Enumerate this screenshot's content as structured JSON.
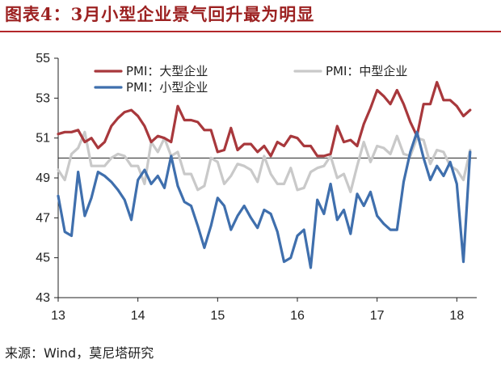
{
  "header": {
    "title": "图表4：3月小型企业景气回升最为明显"
  },
  "footer": {
    "source": "来源：Wind，莫尼塔研究"
  },
  "colors": {
    "large": "#a8383c",
    "medium": "#c9c9c9",
    "small": "#3f6fad",
    "title": "#9c2121",
    "reference": "#222222"
  },
  "chart_data": {
    "type": "line",
    "title": "图表4：3月小型企业景气回升最为明显",
    "xlabel": "",
    "ylabel": "",
    "x_tick_labels": [
      "13",
      "14",
      "15",
      "16",
      "17",
      "18"
    ],
    "x_tick_positions": [
      2013.0,
      2014.0,
      2015.0,
      2016.0,
      2017.0,
      2018.0
    ],
    "xlim": [
      2013.0,
      2018.25
    ],
    "ylim": [
      43,
      55
    ],
    "y_ticks": [
      43,
      45,
      47,
      49,
      51,
      53,
      55
    ],
    "reference_line": 50,
    "legend_position": "top",
    "x": [
      2013.0,
      2013.083,
      2013.167,
      2013.25,
      2013.333,
      2013.417,
      2013.5,
      2013.583,
      2013.667,
      2013.75,
      2013.833,
      2013.917,
      2014.0,
      2014.083,
      2014.167,
      2014.25,
      2014.333,
      2014.417,
      2014.5,
      2014.583,
      2014.667,
      2014.75,
      2014.833,
      2014.917,
      2015.0,
      2015.083,
      2015.167,
      2015.25,
      2015.333,
      2015.417,
      2015.5,
      2015.583,
      2015.667,
      2015.75,
      2015.833,
      2015.917,
      2016.0,
      2016.083,
      2016.167,
      2016.25,
      2016.333,
      2016.417,
      2016.5,
      2016.583,
      2016.667,
      2016.75,
      2016.833,
      2016.917,
      2017.0,
      2017.083,
      2017.167,
      2017.25,
      2017.333,
      2017.417,
      2017.5,
      2017.583,
      2017.667,
      2017.75,
      2017.833,
      2017.917,
      2018.0,
      2018.083,
      2018.167
    ],
    "series": [
      {
        "name": "PMI：大型企业",
        "key": "large",
        "values": [
          51.2,
          51.3,
          51.3,
          51.4,
          50.8,
          51.0,
          50.5,
          50.8,
          51.6,
          52.0,
          52.3,
          52.4,
          52.1,
          51.6,
          50.8,
          51.1,
          51.0,
          50.8,
          52.6,
          51.9,
          51.9,
          51.8,
          51.4,
          51.4,
          50.3,
          50.4,
          51.5,
          50.4,
          50.7,
          50.7,
          50.3,
          50.6,
          50.1,
          50.8,
          50.6,
          51.1,
          51.0,
          50.6,
          50.6,
          50.1,
          50.1,
          50.2,
          51.6,
          50.8,
          50.9,
          50.6,
          51.7,
          52.5,
          53.4,
          53.1,
          52.7,
          53.4,
          52.7,
          51.8,
          51.1,
          52.7,
          52.7,
          53.8,
          52.9,
          52.9,
          52.6,
          52.1,
          52.4
        ]
      },
      {
        "name": "PMI：中型企业",
        "key": "medium",
        "values": [
          49.4,
          48.9,
          50.2,
          50.5,
          51.3,
          49.6,
          49.6,
          49.6,
          50.0,
          50.2,
          50.1,
          49.6,
          49.6,
          48.7,
          50.8,
          50.3,
          51.0,
          50.1,
          50.3,
          49.2,
          49.2,
          48.4,
          48.6,
          50.0,
          49.8,
          48.7,
          49.1,
          49.7,
          49.6,
          49.4,
          48.8,
          50.1,
          49.2,
          48.7,
          48.7,
          49.5,
          48.4,
          48.5,
          49.3,
          49.5,
          49.6,
          50.1,
          49.0,
          49.2,
          48.3,
          49.6,
          50.8,
          49.8,
          50.6,
          50.5,
          50.2,
          51.1,
          50.2,
          50.1,
          51.0,
          50.9,
          49.7,
          50.4,
          50.3,
          49.6,
          49.4,
          48.9,
          50.4
        ]
      },
      {
        "name": "PMI：小型企业",
        "key": "small",
        "values": [
          48.1,
          46.3,
          46.1,
          49.3,
          47.1,
          48.0,
          49.3,
          49.1,
          48.8,
          48.4,
          47.9,
          46.9,
          48.9,
          49.4,
          48.7,
          49.1,
          48.5,
          50.1,
          48.6,
          47.8,
          47.6,
          46.6,
          45.5,
          46.6,
          48.0,
          47.6,
          46.4,
          47.1,
          47.6,
          47.0,
          46.5,
          47.4,
          47.2,
          46.3,
          44.8,
          45.0,
          46.1,
          46.4,
          44.5,
          47.9,
          47.2,
          48.7,
          46.9,
          47.4,
          46.2,
          48.2,
          47.6,
          48.3,
          47.1,
          46.7,
          46.4,
          46.4,
          48.8,
          50.3,
          51.3,
          50.0,
          48.9,
          49.6,
          49.1,
          49.8,
          48.7,
          44.8,
          50.3
        ]
      }
    ]
  }
}
